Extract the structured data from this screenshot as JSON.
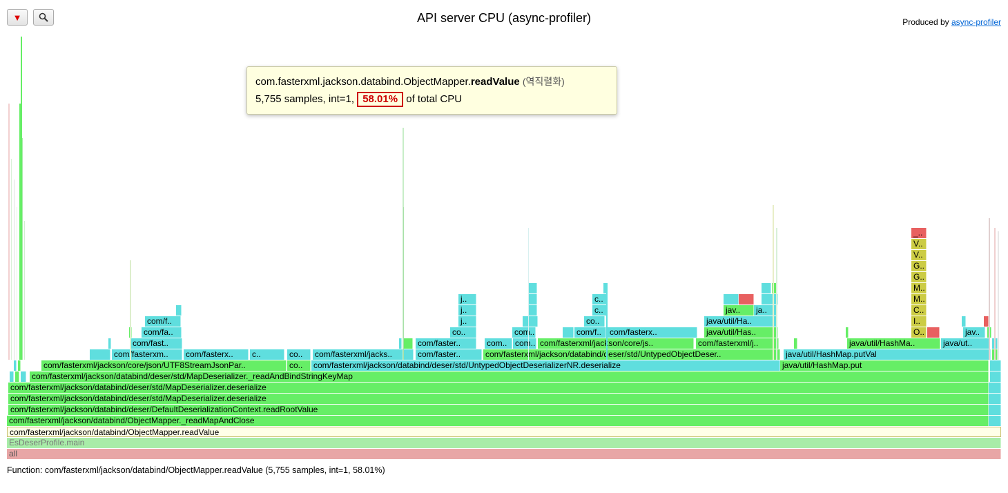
{
  "toolbar": {
    "reverse_icon": "triangle-down-icon",
    "search_icon": "magnifier-icon"
  },
  "title": "API server CPU (async-profiler)",
  "produced_by": {
    "prefix": "Produced by ",
    "link": "async-profiler"
  },
  "tooltip": {
    "class_path": "com.fasterxml.jackson.databind.ObjectMapper.",
    "method": "readValue",
    "korean_note": "(역직렬화)",
    "samples": "5,755 samples, int=1,",
    "percent": "58.01%",
    "suffix": "of total CPU",
    "highlight_color": "#cc0000"
  },
  "status": "Function: com/fasterxml/jackson/databind/ObjectMapper.readValue (5,755 samples, int=1, 58.01%)",
  "colors": {
    "all": "#e8a6a6",
    "main": "#a8eca8",
    "green": "#66ee66",
    "teal": "#5fdede",
    "yellow": "#cccc44",
    "red": "#e86060"
  },
  "flame_labels": {
    "all": "all",
    "main": "EsDeserProfile.main",
    "readValue": "com/fasterxml/jackson/databind/ObjectMapper.readValue",
    "readMapAndClose": "com/fasterxml/jackson/databind/ObjectMapper._readMapAndClose",
    "readRootValue": "com/fasterxml/jackson/databind/deser/DefaultDeserializationContext.readRootValue",
    "mapDeser1": "com/fasterxml/jackson/databind/deser/std/MapDeserializer.deserialize",
    "mapDeser2": "com/fasterxml/jackson/databind/deser/std/MapDeserializer.deserialize",
    "readAndBind": "com/fasterxml/jackson/databind/deser/std/MapDeserializer._readAndBindStringKeyMap",
    "utf8Parser": "com/fasterxml/jackson/core/json/UTF8StreamJsonPar..",
    "co1": "co..",
    "untypedNR": "com/fasterxml/jackson/databind/deser/std/UntypedObjectDeserializerNR.deserialize",
    "hashMapPut": "java/util/HashMap.put",
    "fasterxm": "com/fasterxm..",
    "fasterx": "com/fasterx..",
    "c1": "c..",
    "co2": "co..",
    "jacks": "com/fasterxml/jacks..",
    "faster1": "com/faster..",
    "untypedDeser": "com/fasterxml/jackson/databind/deser/std/UntypedObjectDeser..",
    "putVal": "java/util/HashMap.putVal",
    "fast1": "com/fast..",
    "faster2": "com/faster..",
    "com1": "com..",
    "com2": "com..",
    "coreJs": "com/fasterxml/jackson/core/js..",
    "fasterxmlJ": "com/fasterxml/j..",
    "hashMa": "java/util/HashMa..",
    "javaUt": "java/ut..",
    "fa1": "com/fa..",
    "co3": "co..",
    "com3": "com..",
    "comf": "com/f..",
    "fasterx2": "com/fasterx..",
    "javaHas1": "java/util/Has..",
    "O1": "O..",
    "jav1": "jav..",
    "f1": "com/f..",
    "j1": "j..",
    "co4": "co..",
    "javaHa": "java/util/Ha..",
    "I1": "I..",
    "j2": "j..",
    "c2": "c..",
    "jav2": "jav..",
    "ja1": "ja..",
    "C1": "C..",
    "j3": "j..",
    "c3": "c..",
    "M1": "M..",
    "M2": "M..",
    "G1": "G..",
    "G2": "G..",
    "V1": "V..",
    "V2": "V..",
    "u1": "_.."
  }
}
